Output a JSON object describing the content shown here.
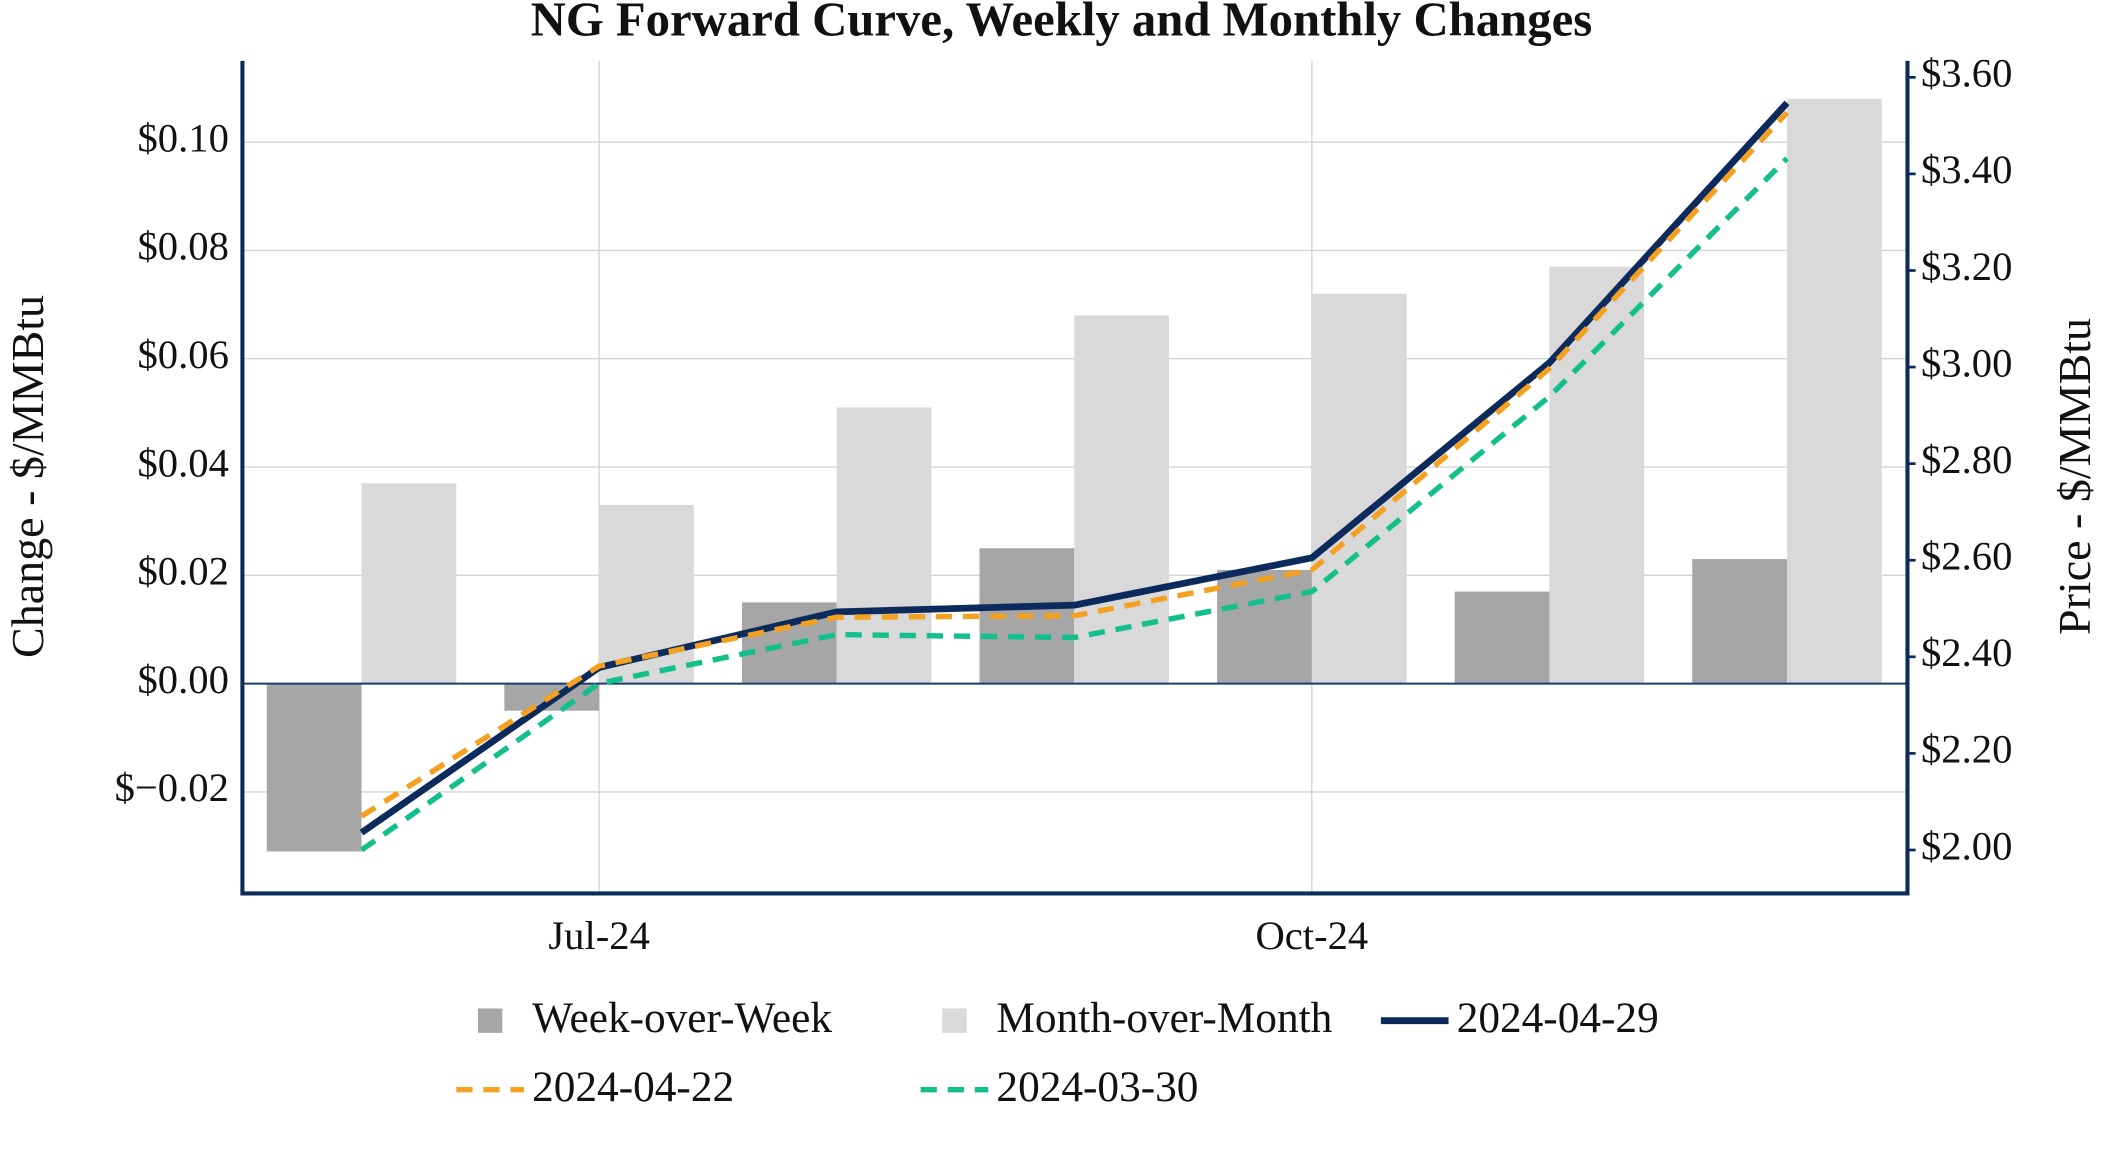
{
  "chart_data": {
    "type": "bar",
    "title": "NG Forward Curve, Weekly and Monthly Changes",
    "y_label": "Change - $/MMBtu",
    "y2_label": "Price - $/MMBtu",
    "categories": [
      null,
      "Jul-24",
      null,
      null,
      "Oct-24",
      null,
      null
    ],
    "ylim": [
      -0.03875,
      0.115
    ],
    "yticks": [
      {
        "value": -0.02,
        "label": "$−0.02"
      },
      {
        "value": 0,
        "label": "$0.00"
      },
      {
        "value": 0.02,
        "label": "$0.02"
      },
      {
        "value": 0.04,
        "label": "$0.04"
      },
      {
        "value": 0.06,
        "label": "$0.06"
      },
      {
        "value": 0.08,
        "label": "$0.08"
      },
      {
        "value": 0.1,
        "label": "$0.10"
      }
    ],
    "y2lim": [
      1.91,
      3.634
    ],
    "y2ticks": [
      {
        "value": 2,
        "label": "$2.00"
      },
      {
        "value": 2.2,
        "label": "$2.20"
      },
      {
        "value": 2.4,
        "label": "$2.40"
      },
      {
        "value": 2.6,
        "label": "$2.60"
      },
      {
        "value": 2.8,
        "label": "$2.80"
      },
      {
        "value": 3,
        "label": "$3.00"
      },
      {
        "value": 3.2,
        "label": "$3.20"
      },
      {
        "value": 3.4,
        "label": "$3.40"
      },
      {
        "value": 3.6,
        "label": "$3.60"
      }
    ],
    "grid": true,
    "legend": "bottom",
    "series": [
      {
        "name": "Week-over-Week",
        "type": "bar",
        "color": "#a6a6a6",
        "values": [
          -0.031,
          -0.005,
          0.015,
          0.025,
          0.021,
          0.017,
          0.023
        ]
      },
      {
        "name": "Month-over-Month",
        "type": "bar",
        "color": "#d9d9d9",
        "values": [
          0.037,
          0.033,
          0.051,
          0.068,
          0.072,
          0.077,
          0.108
        ]
      },
      {
        "name": "2024-04-29",
        "type": "line",
        "axis": "y2",
        "color": "#0c2a5b",
        "linestyle": "solid",
        "values": [
          2.036,
          2.378,
          2.493,
          2.507,
          2.605,
          3.009,
          3.547
        ]
      },
      {
        "name": "2024-04-22",
        "type": "line",
        "axis": "y2",
        "color": "#f4a020",
        "linestyle": "dashed",
        "values": [
          2.07,
          2.381,
          2.482,
          2.485,
          2.58,
          2.997,
          3.527
        ]
      },
      {
        "name": "2024-03-30",
        "type": "line",
        "axis": "y2",
        "color": "#13bf8a",
        "linestyle": "dashed",
        "values": [
          2.0,
          2.345,
          2.446,
          2.44,
          2.535,
          2.939,
          3.432
        ]
      }
    ]
  }
}
